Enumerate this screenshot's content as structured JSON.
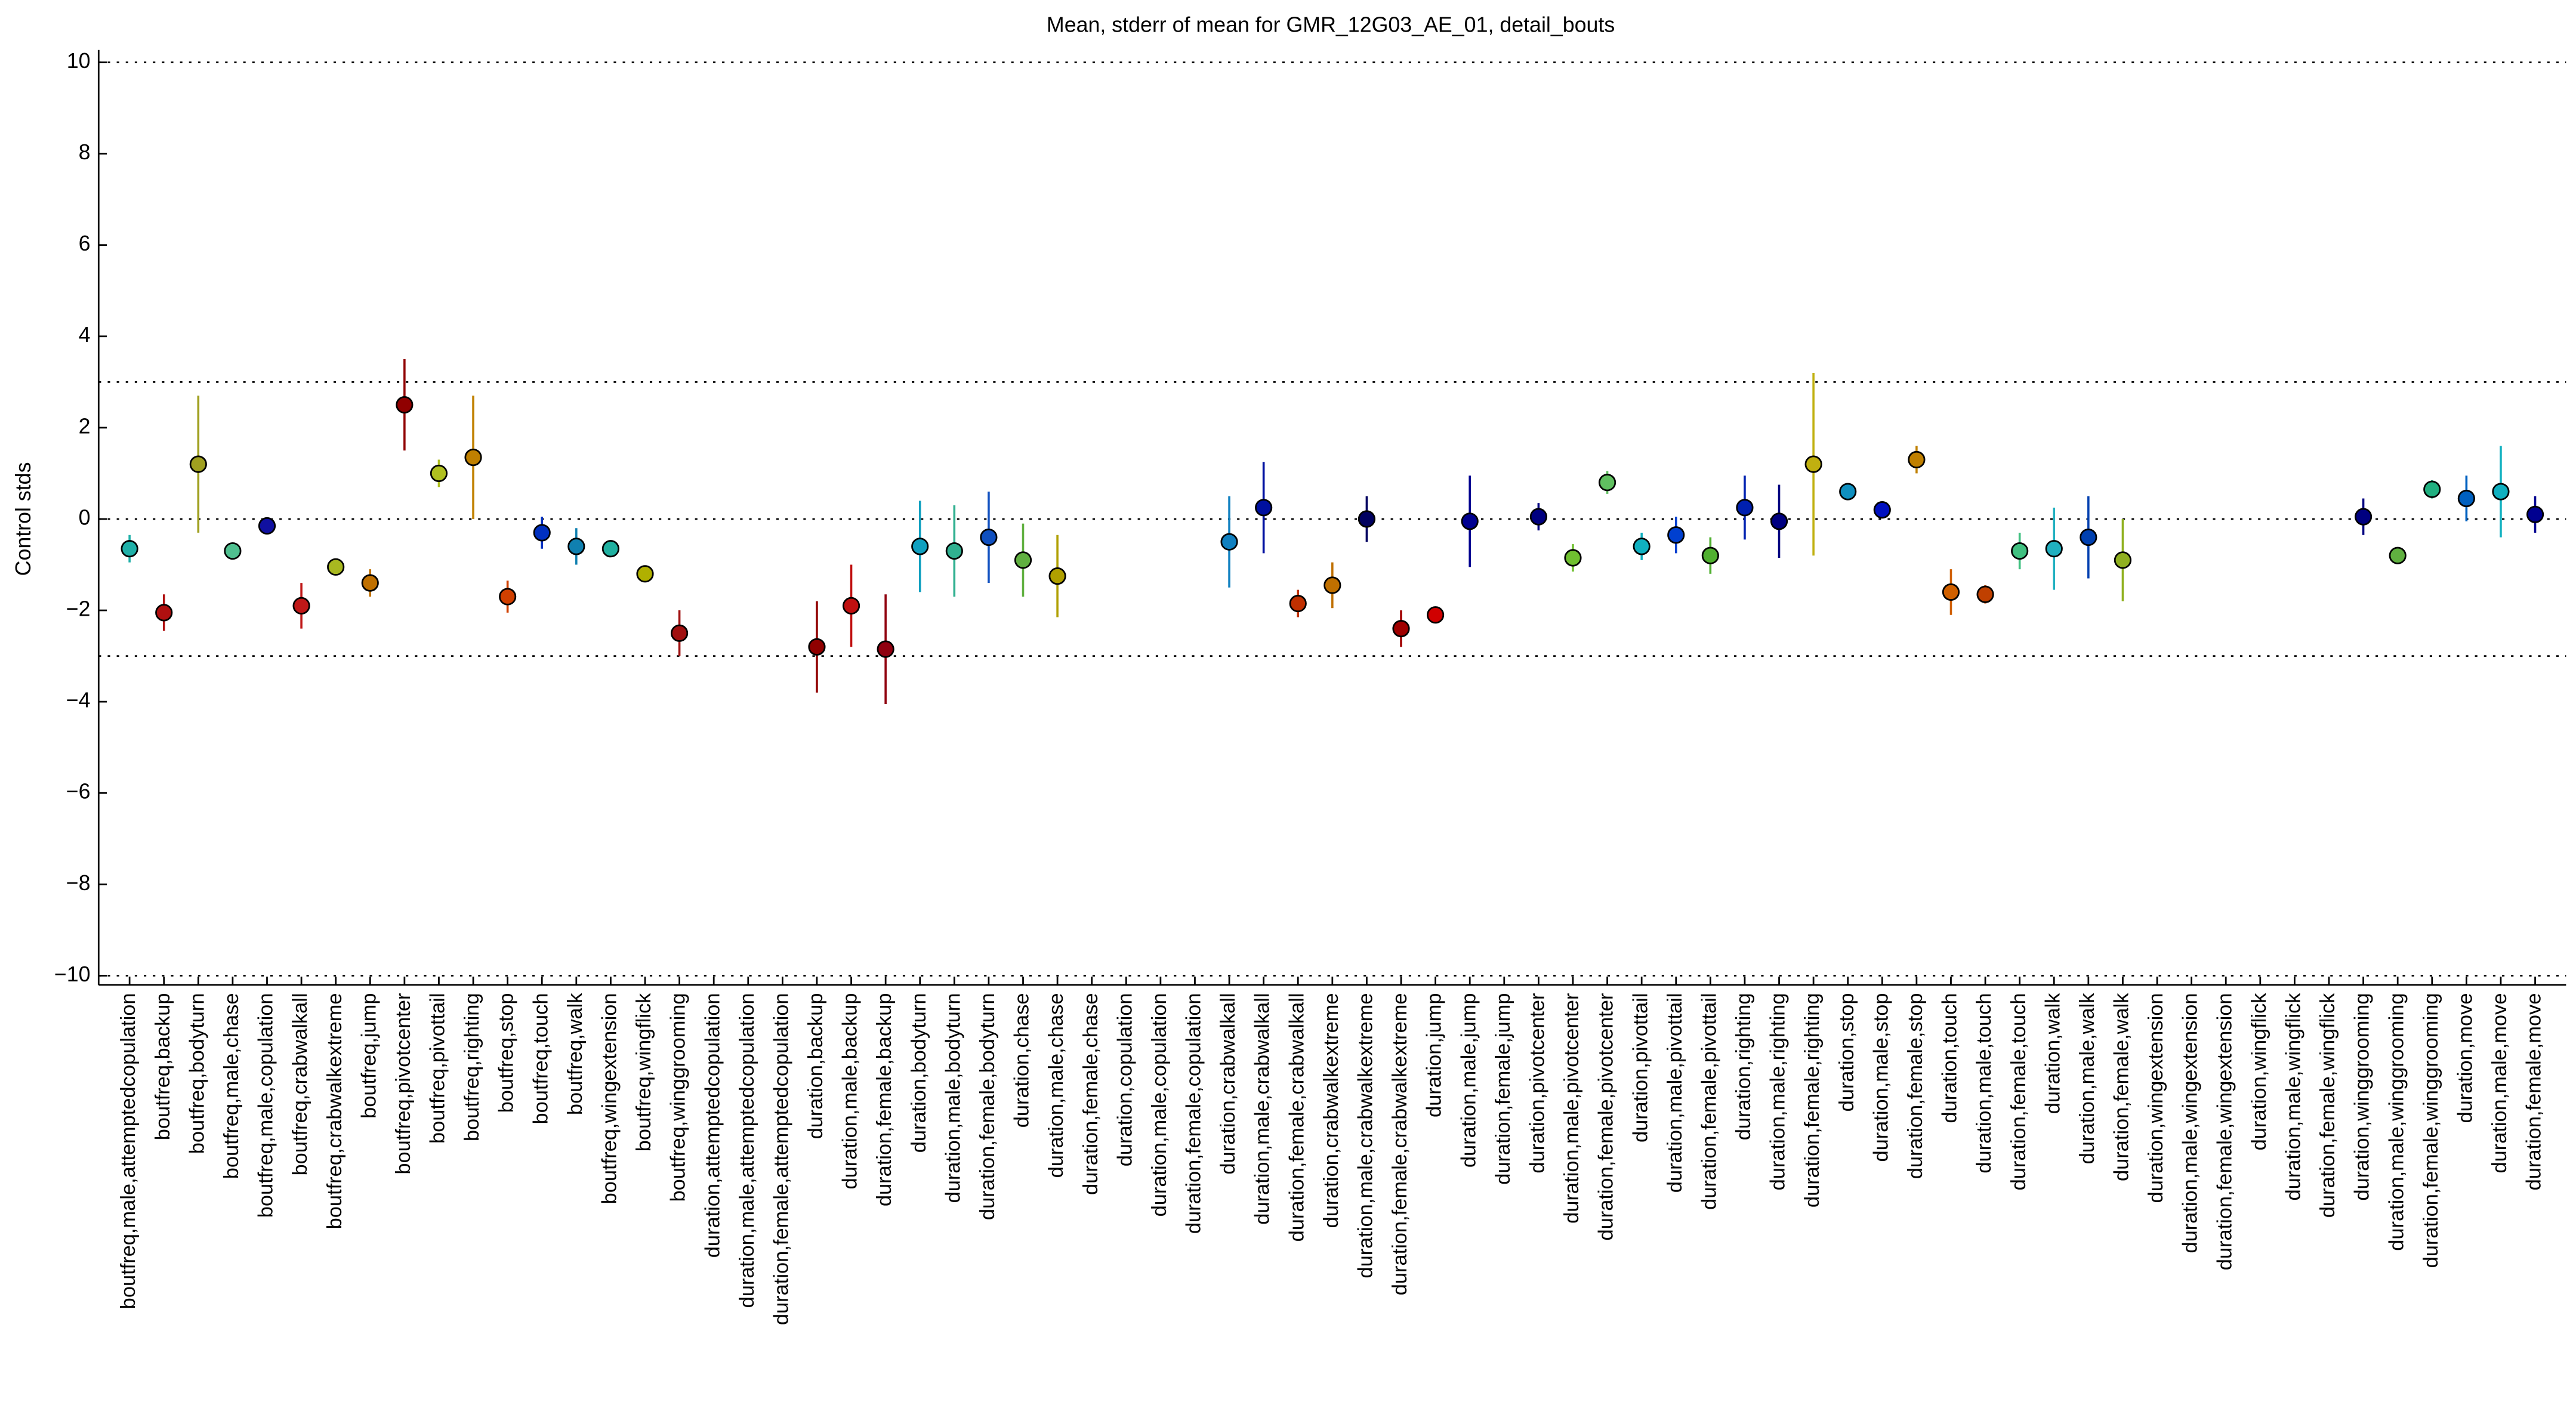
{
  "chart_data": {
    "type": "errorbar",
    "title": "Mean, stderr of mean for GMR_12G03_AE_01, detail_bouts",
    "y_label": "Control stds",
    "ylim": [
      -10.2,
      10.2
    ],
    "yticks": [
      {
        "value": -10,
        "label": "−10"
      },
      {
        "value": -8,
        "label": "−8"
      },
      {
        "value": -6,
        "label": "−6"
      },
      {
        "value": -4,
        "label": "−4"
      },
      {
        "value": -2,
        "label": "−2"
      },
      0,
      2,
      4,
      6,
      8,
      10
    ],
    "reference_lines": [
      -10,
      -3,
      0,
      3,
      10
    ],
    "categories": [
      "boutfreq,male,attemptedcopulation",
      "boutfreq,backup",
      "boutfreq,bodyturn",
      "boutfreq,male,chase",
      "boutfreq,male,copulation",
      "boutfreq,crabwalkall",
      "boutfreq,crabwalkextreme",
      "boutfreq,jump",
      "boutfreq,pivotcenter",
      "boutfreq,pivottail",
      "boutfreq,righting",
      "boutfreq,stop",
      "boutfreq,touch",
      "boutfreq,walk",
      "boutfreq,wingextension",
      "boutfreq,wingflick",
      "boutfreq,winggrooming",
      "duration,attemptedcopulation",
      "duration,male,attemptedcopulation",
      "duration,female,attemptedcopulation",
      "duration,backup",
      "duration,male,backup",
      "duration,female,backup",
      "duration,bodyturn",
      "duration,male,bodyturn",
      "duration,female,bodyturn",
      "duration,chase",
      "duration,male,chase",
      "duration,female,chase",
      "duration,copulation",
      "duration,male,copulation",
      "duration,female,copulation",
      "duration,crabwalkall",
      "duration,male,crabwalkall",
      "duration,female,crabwalkall",
      "duration,crabwalkextreme",
      "duration,male,crabwalkextreme",
      "duration,female,crabwalkextreme",
      "duration,jump",
      "duration,male,jump",
      "duration,female,jump",
      "duration,pivotcenter",
      "duration,male,pivotcenter",
      "duration,female,pivotcenter",
      "duration,pivottail",
      "duration,male,pivottail",
      "duration,female,pivottail",
      "duration,righting",
      "duration,male,righting",
      "duration,female,righting",
      "duration,stop",
      "duration,male,stop",
      "duration,female,stop",
      "duration,touch",
      "duration,male,touch",
      "duration,female,touch",
      "duration,walk",
      "duration,male,walk",
      "duration,female,walk",
      "duration,wingextension",
      "duration,male,wingextension",
      "duration,female,wingextension",
      "duration,wingflick",
      "duration,male,wingflick",
      "duration,female,wingflick",
      "duration,winggrooming",
      "duration,male,winggrooming",
      "duration,female,winggrooming",
      "duration,move",
      "duration,male,move",
      "duration,female,move"
    ],
    "values": [
      -0.65,
      -2.05,
      1.2,
      -0.7,
      -0.15,
      -1.9,
      -1.05,
      -1.4,
      2.5,
      1.0,
      1.35,
      -1.7,
      -0.3,
      -0.6,
      -0.65,
      -1.2,
      -2.5,
      null,
      null,
      null,
      -2.8,
      -1.9,
      -2.85,
      -0.6,
      -0.7,
      -0.4,
      -0.9,
      -1.25,
      null,
      null,
      null,
      null,
      -0.5,
      0.25,
      -1.85,
      -1.45,
      0.0,
      -2.4,
      -2.1,
      -0.05,
      null,
      0.05,
      -0.85,
      0.8,
      -0.6,
      -0.35,
      -0.8,
      0.25,
      -0.05,
      1.2,
      0.6,
      0.2,
      1.3,
      -1.6,
      -1.65,
      -0.7,
      -0.65,
      -0.4,
      -0.9,
      null,
      null,
      null,
      null,
      null,
      null,
      0.05,
      -0.8,
      0.65,
      0.45,
      0.6,
      0.1
    ],
    "errors": [
      0.3,
      0.4,
      1.5,
      0.1,
      0.1,
      0.5,
      0.1,
      0.3,
      1.0,
      0.3,
      1.35,
      0.35,
      0.35,
      0.4,
      0.1,
      0.1,
      0.5,
      null,
      null,
      null,
      1.0,
      0.9,
      1.2,
      1.0,
      1.0,
      1.0,
      0.8,
      0.9,
      null,
      null,
      null,
      null,
      1.0,
      1.0,
      0.3,
      0.5,
      0.5,
      0.4,
      0.15,
      1.0,
      null,
      0.3,
      0.3,
      0.25,
      0.3,
      0.4,
      0.4,
      0.7,
      0.8,
      2.0,
      0.1,
      0.1,
      0.3,
      0.5,
      0.2,
      0.4,
      0.9,
      0.9,
      0.9,
      null,
      null,
      null,
      null,
      null,
      null,
      0.4,
      0.15,
      0.2,
      0.5,
      1.0,
      0.4
    ],
    "colors": [
      "#20b0a8",
      "#b01010",
      "#a0a020",
      "#50c090",
      "#1010a0",
      "#c01818",
      "#a8b820",
      "#c07000",
      "#900000",
      "#b0c020",
      "#c08000",
      "#d04000",
      "#0030c0",
      "#1080b0",
      "#20b0a0",
      "#b0b000",
      "#a01010",
      "#909090",
      "#909090",
      "#909090",
      "#900000",
      "#c01010",
      "#900010",
      "#10a0c0",
      "#30b090",
      "#1050c0",
      "#60b040",
      "#b0a000",
      "#909090",
      "#909090",
      "#909090",
      "#909090",
      "#1080c0",
      "#0010a0",
      "#c03000",
      "#c07000",
      "#000060",
      "#a00000",
      "#d00000",
      "#000090",
      "#909090",
      "#000080",
      "#70c030",
      "#60c060",
      "#10b0c0",
      "#0040d0",
      "#50b030",
      "#0020b0",
      "#000080",
      "#c0b010",
      "#1090c0",
      "#0010c0",
      "#c08000",
      "#d06000",
      "#c04000",
      "#40c080",
      "#20b0c0",
      "#0040b0",
      "#90b020",
      "#909090",
      "#909090",
      "#909090",
      "#909090",
      "#909090",
      "#909090",
      "#000080",
      "#60b040",
      "#20b080",
      "#0060c0",
      "#10b0c0",
      "#000090"
    ]
  }
}
